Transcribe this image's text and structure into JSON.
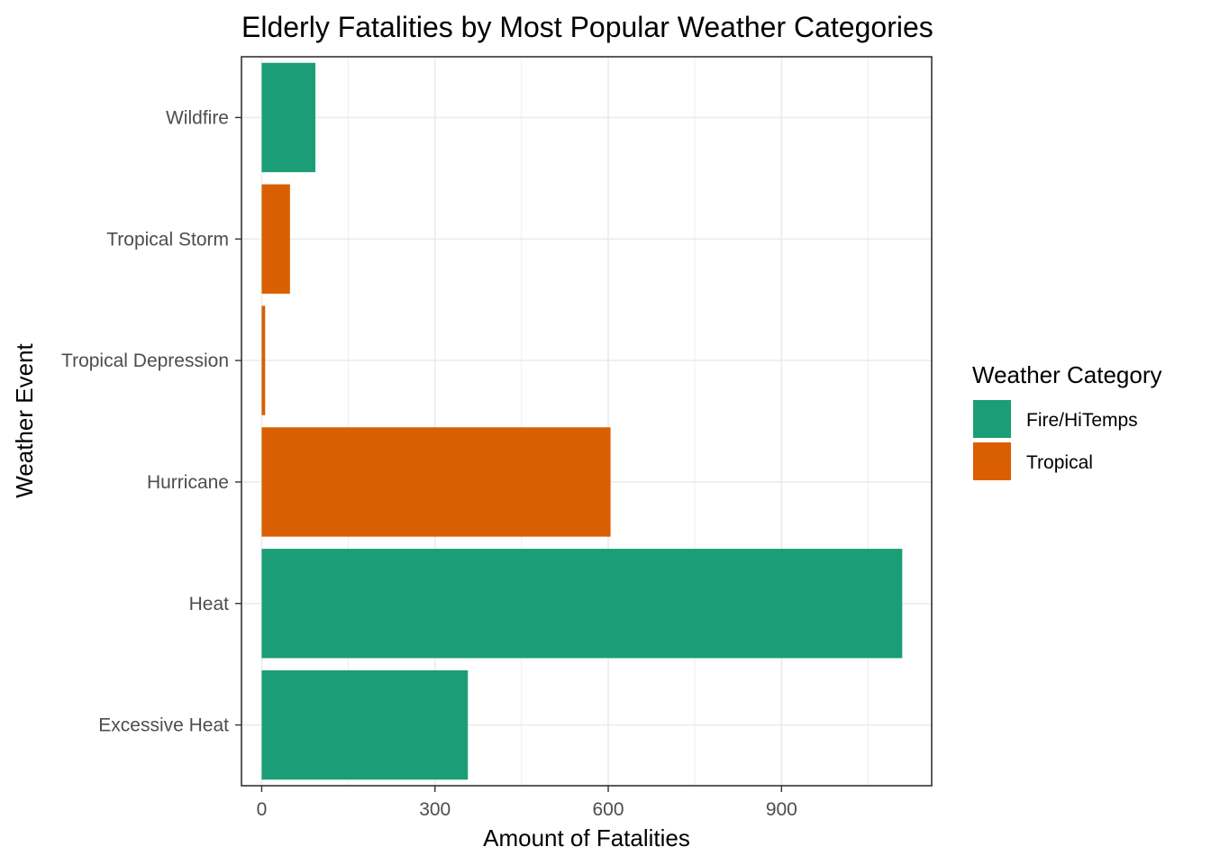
{
  "chart_data": {
    "type": "bar",
    "orientation": "horizontal",
    "title": "Elderly Fatalities by Most Popular Weather Categories",
    "xlabel": "Amount of Fatalities",
    "ylabel": "Weather Event",
    "xlim": [
      -35,
      1160
    ],
    "x_ticks": [
      0,
      300,
      600,
      900
    ],
    "categories": [
      "Excessive Heat",
      "Heat",
      "Hurricane",
      "Tropical Depression",
      "Tropical Storm",
      "Wildfire"
    ],
    "values": [
      357,
      1109,
      604,
      6,
      49,
      93
    ],
    "groups": [
      "Fire/HiTemps",
      "Fire/HiTemps",
      "Tropical",
      "Tropical",
      "Tropical",
      "Fire/HiTemps"
    ],
    "grid": true,
    "legend": {
      "title": "Weather Category",
      "position": "right",
      "entries": [
        {
          "name": "Fire/HiTemps",
          "color": "#1b9e77"
        },
        {
          "name": "Tropical",
          "color": "#d95f02"
        }
      ]
    }
  }
}
